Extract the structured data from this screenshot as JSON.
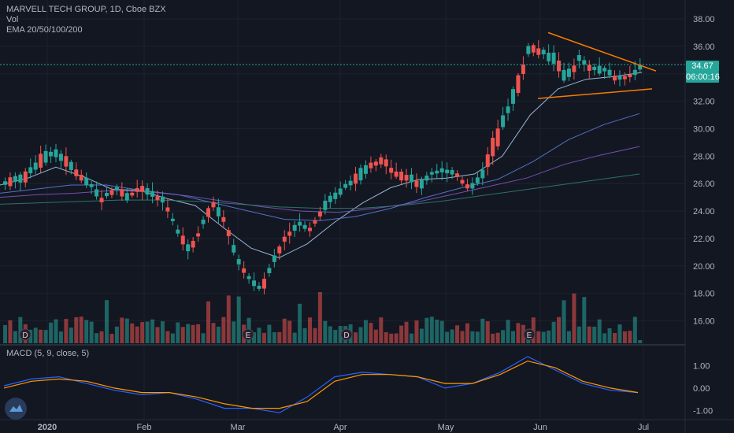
{
  "header": {
    "symbol_line": "MARVELL TECH GROUP, 1D, Cboe BZX",
    "vol_label": "Vol",
    "ema_label": "EMA 20/50/100/200"
  },
  "price_axis": {
    "ticks": [
      "38.00",
      "36.00",
      "34.00",
      "32.00",
      "30.00",
      "28.00",
      "26.00",
      "24.00",
      "22.00",
      "20.00",
      "18.00",
      "16.00"
    ],
    "last_price": "34.67",
    "countdown": "06:00:16"
  },
  "time_axis": {
    "labels": [
      "2020",
      "Feb",
      "Mar",
      "Apr",
      "May",
      "Jun",
      "Jul"
    ]
  },
  "event_markers": [
    "D",
    "E",
    "D",
    "E"
  ],
  "macd": {
    "label": "MACD (5, 9, close, 5)",
    "ticks": [
      "1.00",
      "0.00",
      "-1.00"
    ]
  },
  "colors": {
    "background": "#131722",
    "up": "#26a69a",
    "down": "#ef5350",
    "ema20": "#a7c7e7",
    "ema50": "#5b7bd5",
    "ema100": "#7e57c2",
    "ema200": "#2e7d72",
    "trendline": "#f57c00",
    "macd_line": "#2962ff",
    "signal_line": "#ff9800"
  },
  "chart_data": {
    "type": "candlestick",
    "title": "MARVELL TECH GROUP, 1D, Cboe BZX",
    "price_range": [
      14.6,
      38.8
    ],
    "macd_range": [
      -1.3,
      1.5
    ],
    "last_price": 34.67,
    "ohlc_anchors": [
      [
        25.8,
        26.3
      ],
      [
        25.6,
        26.8
      ],
      [
        26.3,
        27.4
      ],
      [
        26.9,
        28.3
      ],
      [
        27.6,
        28.8
      ],
      [
        27.2,
        28.1
      ],
      [
        26.3,
        27.1
      ],
      [
        25.6,
        26.2
      ],
      [
        24.4,
        25.3
      ],
      [
        25.4,
        25.9
      ],
      [
        24.6,
        25.5
      ],
      [
        25.5,
        25.9
      ],
      [
        25.1,
        25.5
      ],
      [
        24.5,
        25.1
      ],
      [
        22.5,
        23.0
      ],
      [
        20.5,
        21.8
      ],
      [
        22.2,
        23.1
      ],
      [
        24.3,
        25.0
      ],
      [
        22.8,
        23.8
      ],
      [
        20.1,
        20.9
      ],
      [
        19.3,
        18.9
      ],
      [
        17.9,
        18.6
      ],
      [
        19.8,
        20.8
      ],
      [
        21.9,
        22.6
      ],
      [
        22.8,
        23.4
      ],
      [
        22.5,
        22.9
      ],
      [
        23.6,
        24.6
      ],
      [
        24.8,
        25.5
      ],
      [
        25.4,
        26.2
      ],
      [
        26.0,
        27.1
      ],
      [
        27.1,
        27.6
      ],
      [
        27.4,
        28.0
      ],
      [
        26.3,
        27.3
      ],
      [
        25.9,
        26.8
      ],
      [
        25.5,
        26.4
      ],
      [
        26.4,
        27.0
      ],
      [
        26.8,
        27.1
      ],
      [
        26.3,
        27.1
      ],
      [
        25.5,
        25.8
      ],
      [
        26.0,
        27.0
      ],
      [
        28.0,
        29.6
      ],
      [
        30.0,
        31.6
      ],
      [
        32.4,
        34.0
      ],
      [
        35.5,
        36.7
      ],
      [
        35.2,
        35.8
      ],
      [
        34.3,
        35.6
      ],
      [
        33.2,
        34.2
      ],
      [
        34.6,
        35.4
      ],
      [
        34.2,
        34.5
      ],
      [
        33.9,
        34.7
      ],
      [
        33.4,
        33.9
      ],
      [
        33.6,
        34.0
      ],
      [
        34.0,
        34.7
      ]
    ],
    "volume_range": [
      0,
      140
    ],
    "volume_note": "Volume in units not printed on the chart; relative bar heights only",
    "ema": [
      {
        "name": "EMA 20",
        "values": [
          25.9,
          26.4,
          27.2,
          26.5,
          25.6,
          25.5,
          24.9,
          24.4,
          22.8,
          21.3,
          20.6,
          21.6,
          23.2,
          24.6,
          25.7,
          26.3,
          26.4,
          26.7,
          28.0,
          31.0,
          32.9,
          33.6,
          33.8,
          34.1
        ]
      },
      {
        "name": "EMA 50",
        "values": [
          25.3,
          25.6,
          25.9,
          25.9,
          25.5,
          25.2,
          24.6,
          24.0,
          23.4,
          23.3,
          23.6,
          24.2,
          25.0,
          25.7,
          26.3,
          27.6,
          29.2,
          30.3,
          31.1
        ]
      },
      {
        "name": "EMA 100",
        "values": [
          25.0,
          25.2,
          25.3,
          25.5,
          25.4,
          25.1,
          24.7,
          24.3,
          24.0,
          23.9,
          24.2,
          24.6,
          25.2,
          25.8,
          26.4,
          27.4,
          28.1,
          28.7
        ]
      },
      {
        "name": "EMA 200",
        "values": [
          24.5,
          24.6,
          24.7,
          24.8,
          24.8,
          24.7,
          24.5,
          24.3,
          24.2,
          24.2,
          24.4,
          24.7,
          25.1,
          25.5,
          25.9,
          26.3,
          26.7
        ]
      }
    ],
    "trendlines": [
      {
        "from": [
          37.0,
          "Jun 3"
        ],
        "to": [
          34.2,
          "Jun 30"
        ]
      },
      {
        "from": [
          32.2,
          "Jun 4"
        ],
        "to": [
          32.9,
          "Jun 30"
        ]
      }
    ],
    "macd_series": [
      {
        "name": "MACD",
        "values": [
          0.1,
          0.4,
          0.5,
          0.2,
          -0.1,
          -0.3,
          -0.2,
          -0.5,
          -0.9,
          -0.9,
          -1.1,
          -0.4,
          0.5,
          0.7,
          0.6,
          0.5,
          0.0,
          0.2,
          0.7,
          1.4,
          0.8,
          0.2,
          -0.1,
          -0.2
        ]
      },
      {
        "name": "Signal",
        "values": [
          0.0,
          0.3,
          0.4,
          0.3,
          0.0,
          -0.2,
          -0.2,
          -0.4,
          -0.7,
          -0.9,
          -0.9,
          -0.6,
          0.3,
          0.6,
          0.6,
          0.5,
          0.2,
          0.2,
          0.6,
          1.2,
          0.9,
          0.3,
          0.0,
          -0.2
        ]
      }
    ]
  }
}
